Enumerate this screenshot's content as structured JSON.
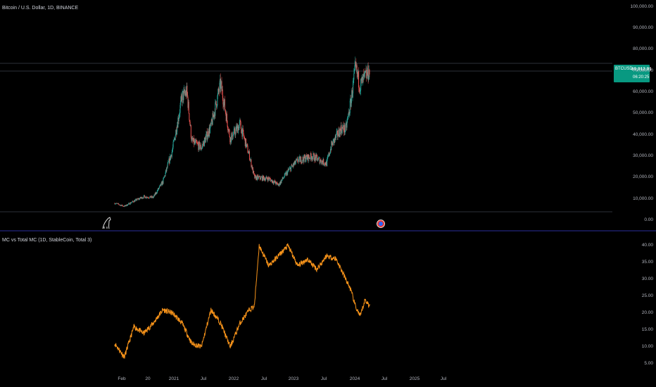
{
  "price_pane": {
    "title": "Bitcoin / U.S. Dollar, 1D, BINANCE",
    "symbol": "BTCUSD",
    "last_price": "69,912.91",
    "countdown": "06:20:25"
  },
  "indicator_pane": {
    "title": "MC vs Total MC (1D, StableCoin, Total 3)"
  },
  "x_axis_labels": [
    "Feb",
    "20",
    "2021",
    "Jul",
    "2022",
    "Jul",
    "2023",
    "Jul",
    "2024",
    "Jul",
    "2025",
    "Jul"
  ],
  "colors": {
    "up": "#26a69a",
    "down": "#ef5350",
    "indicator": "#f7931a",
    "pane_divider": "#2a2e9c",
    "price_tag": "#089981"
  },
  "chart_data": [
    {
      "type": "candlestick",
      "title": "Bitcoin / U.S. Dollar, 1D, BINANCE",
      "ylim": [
        0,
        100000
      ],
      "y_tick_labels": [
        "100,000.00",
        "90,000.00",
        "80,000.00",
        "70,000.00",
        "60,000.00",
        "50,000.00",
        "40,000.00",
        "30,000.00",
        "20,000.00",
        "10,000.00",
        "0.00"
      ],
      "x": [
        "2020-01",
        "2020-03",
        "2020-05",
        "2020-07",
        "2020-09",
        "2020-11",
        "2021-01",
        "2021-03",
        "2021-04",
        "2021-05",
        "2021-07",
        "2021-09",
        "2021-11",
        "2022-01",
        "2022-03",
        "2022-05",
        "2022-06",
        "2022-09",
        "2022-11",
        "2023-01",
        "2023-03",
        "2023-06",
        "2023-09",
        "2023-10",
        "2023-12",
        "2024-01",
        "2024-02",
        "2024-03",
        "2024-04",
        "2024-05",
        "2024-06"
      ],
      "close": [
        8000,
        6500,
        9000,
        11000,
        10700,
        18000,
        33000,
        58000,
        60000,
        37000,
        34000,
        44000,
        64000,
        38000,
        45000,
        30000,
        20000,
        19500,
        16500,
        23000,
        28000,
        30000,
        26500,
        35000,
        43000,
        42500,
        55000,
        71000,
        63000,
        67000,
        70000
      ],
      "horizontal_levels": [
        73000,
        69912.91,
        3000
      ]
    },
    {
      "type": "line",
      "title": "MC vs Total MC (1D, StableCoin, Total 3)",
      "ylim": [
        5,
        40
      ],
      "y_tick_labels": [
        "40.00",
        "35.00",
        "30.00",
        "25.00",
        "20.00",
        "15.00",
        "10.00",
        "5.00"
      ],
      "x": [
        "2020-01",
        "2020-03",
        "2020-05",
        "2020-07",
        "2020-09",
        "2020-11",
        "2021-01",
        "2021-03",
        "2021-05",
        "2021-07",
        "2021-09",
        "2021-11",
        "2022-01",
        "2022-03",
        "2022-05",
        "2022-06",
        "2022-07",
        "2022-09",
        "2022-11",
        "2023-01",
        "2023-03",
        "2023-05",
        "2023-07",
        "2023-09",
        "2023-11",
        "2024-01",
        "2024-02",
        "2024-03",
        "2024-04",
        "2024-05",
        "2024-06"
      ],
      "values": [
        11,
        7,
        16,
        14,
        17,
        21,
        20,
        17,
        11,
        10,
        21,
        17,
        10,
        17,
        21,
        22,
        40,
        34,
        37,
        40,
        34,
        36,
        33,
        37,
        36,
        30,
        27,
        22,
        19,
        24,
        22
      ]
    }
  ]
}
